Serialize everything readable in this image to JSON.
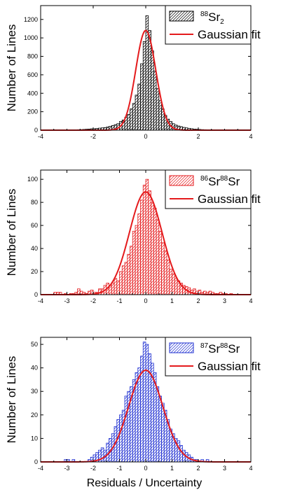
{
  "figure": {
    "xlabel": "Residuals / Uncertainty"
  },
  "chart_data": [
    {
      "type": "bar",
      "ylabel": "Number of Lines",
      "xlim": [
        -4,
        4
      ],
      "ylim": [
        0,
        1350
      ],
      "xticks": [
        "-4",
        "-2",
        "0",
        "2",
        "4"
      ],
      "xtick_values": [
        -4,
        -2,
        0,
        2,
        4
      ],
      "yticks": [
        "0",
        "200",
        "400",
        "600",
        "800",
        "1000",
        "1200"
      ],
      "ytick_values": [
        0,
        200,
        400,
        600,
        800,
        1000,
        1200
      ],
      "color": "#000000",
      "fit_color": "#e41a1c",
      "bin_start": -4,
      "bin_width": 0.1,
      "values": [
        0,
        0,
        0,
        0,
        0,
        0,
        0,
        0,
        0,
        0,
        0,
        0,
        2,
        3,
        5,
        6,
        8,
        10,
        12,
        15,
        16,
        18,
        22,
        25,
        28,
        35,
        42,
        50,
        60,
        70,
        95,
        110,
        140,
        170,
        230,
        290,
        380,
        500,
        720,
        960,
        1240,
        1080,
        860,
        640,
        450,
        320,
        230,
        160,
        120,
        95,
        70,
        55,
        45,
        38,
        30,
        25,
        20,
        16,
        12,
        10,
        8,
        6,
        5,
        4,
        3,
        2,
        2,
        1,
        1,
        1,
        1,
        1,
        0,
        0,
        0,
        0,
        0,
        0,
        0,
        0
      ],
      "fit": {
        "amplitude": 1080,
        "mean": 0.0,
        "sigma": 0.38
      },
      "legend": {
        "sup": "88",
        "main": "Sr",
        "sub": "2",
        "fit_label": "Gaussian fit"
      }
    },
    {
      "type": "bar",
      "ylabel": "Number of Lines",
      "xlim": [
        -4,
        4
      ],
      "ylim": [
        0,
        108
      ],
      "xticks": [
        "-4",
        "-3",
        "-2",
        "-1",
        "0",
        "1",
        "2",
        "3",
        "4"
      ],
      "xtick_values": [
        -4,
        -3,
        -2,
        -1,
        0,
        1,
        2,
        3,
        4
      ],
      "yticks": [
        "0",
        "20",
        "40",
        "60",
        "80",
        "100"
      ],
      "ytick_values": [
        0,
        20,
        40,
        60,
        80,
        100
      ],
      "color": "#e41a1c",
      "fit_color": "#e41a1c",
      "bin_start": -4,
      "bin_width": 0.1,
      "values": [
        0,
        0,
        0,
        0,
        0,
        2,
        2,
        2,
        0,
        1,
        0,
        1,
        1,
        2,
        5,
        3,
        2,
        1,
        3,
        4,
        2,
        2,
        5,
        5,
        8,
        10,
        8,
        10,
        14,
        12,
        20,
        25,
        28,
        35,
        42,
        55,
        60,
        70,
        82,
        95,
        100,
        90,
        80,
        75,
        65,
        55,
        45,
        38,
        30,
        22,
        18,
        14,
        12,
        10,
        8,
        7,
        6,
        4,
        5,
        3,
        4,
        2,
        3,
        2,
        3,
        2,
        1,
        1,
        2,
        1,
        1,
        0,
        1,
        0,
        0,
        0,
        0,
        0,
        0,
        0
      ],
      "fit": {
        "amplitude": 89,
        "mean": 0.0,
        "sigma": 0.62
      },
      "legend": {
        "sup1": "86",
        "main1": "Sr",
        "sup2": "88",
        "main2": "Sr",
        "fit_label": "Gaussian fit"
      }
    },
    {
      "type": "bar",
      "ylabel": "Number of Lines",
      "xlim": [
        -4,
        4
      ],
      "ylim": [
        0,
        53
      ],
      "xticks": [
        "-4",
        "-3",
        "-2",
        "-1",
        "0",
        "1",
        "2",
        "3",
        "4"
      ],
      "xtick_values": [
        -4,
        -3,
        -2,
        -1,
        0,
        1,
        2,
        3,
        4
      ],
      "yticks": [
        "0",
        "10",
        "20",
        "30",
        "40",
        "50"
      ],
      "ytick_values": [
        0,
        10,
        20,
        30,
        40,
        50
      ],
      "color": "#1f2fd1",
      "fit_color": "#e41a1c",
      "bin_start": -4,
      "bin_width": 0.1,
      "values": [
        0,
        0,
        0,
        0,
        0,
        0,
        0,
        0,
        0,
        1,
        1,
        0,
        1,
        0,
        0,
        0,
        0,
        0,
        1,
        2,
        3,
        4,
        5,
        6,
        5,
        8,
        10,
        12,
        15,
        18,
        20,
        22,
        28,
        30,
        32,
        35,
        38,
        40,
        45,
        51,
        50,
        46,
        42,
        38,
        32,
        28,
        25,
        22,
        18,
        14,
        12,
        10,
        9,
        7,
        5,
        4,
        3,
        2,
        1,
        1,
        0,
        1,
        0,
        1,
        0,
        0,
        0,
        0,
        0,
        0,
        0,
        0,
        0,
        0,
        0,
        0,
        0,
        0,
        0,
        0
      ],
      "fit": {
        "amplitude": 39,
        "mean": 0.0,
        "sigma": 0.65
      },
      "legend": {
        "sup1": "87",
        "main1": "Sr",
        "sup2": "88",
        "main2": "Sr",
        "fit_label": "Gaussian fit"
      }
    }
  ]
}
